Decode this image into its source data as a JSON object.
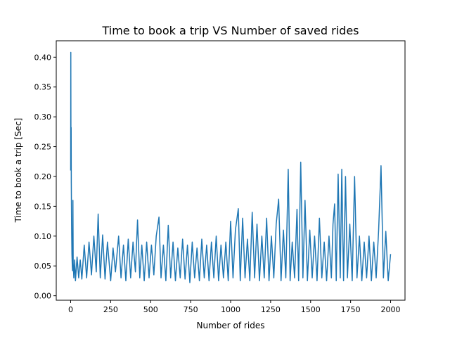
{
  "chart_data": {
    "type": "line",
    "title": "Time to book a trip VS Number of saved rides",
    "xlabel": "Number of rides",
    "ylabel": "Time to book a trip [Sec]",
    "xlim": [
      -90,
      2090
    ],
    "ylim": [
      -0.0075,
      0.4275
    ],
    "xticks": [
      0,
      250,
      500,
      750,
      1000,
      1250,
      1500,
      1750,
      2000
    ],
    "yticks": [
      0.0,
      0.05,
      0.1,
      0.15,
      0.2,
      0.25,
      0.3,
      0.35,
      0.4
    ],
    "xtick_labels": [
      "0",
      "250",
      "500",
      "750",
      "1000",
      "1250",
      "1500",
      "1750",
      "2000"
    ],
    "ytick_labels": [
      "0.00",
      "0.05",
      "0.10",
      "0.15",
      "0.20",
      "0.25",
      "0.30",
      "0.35",
      "0.40"
    ],
    "grid": false,
    "legend": "none",
    "series": [
      {
        "color": "#1f77b4",
        "x": [
          0,
          1,
          2,
          3,
          4,
          6,
          8,
          10,
          12,
          14,
          16,
          20,
          25,
          30,
          40,
          50,
          60,
          70,
          85,
          100,
          115,
          130,
          145,
          160,
          172,
          185,
          200,
          215,
          230,
          250,
          265,
          280,
          300,
          315,
          330,
          345,
          360,
          375,
          390,
          405,
          418,
          432,
          445,
          460,
          475,
          490,
          505,
          520,
          535,
          552,
          565,
          580,
          595,
          610,
          625,
          640,
          655,
          670,
          685,
          700,
          715,
          730,
          745,
          760,
          775,
          790,
          805,
          820,
          835,
          850,
          865,
          880,
          895,
          910,
          925,
          940,
          955,
          970,
          985,
          1000,
          1015,
          1030,
          1048,
          1060,
          1075,
          1090,
          1105,
          1120,
          1135,
          1150,
          1165,
          1180,
          1195,
          1210,
          1225,
          1240,
          1255,
          1270,
          1285,
          1300,
          1315,
          1330,
          1345,
          1360,
          1372,
          1385,
          1400,
          1415,
          1425,
          1438,
          1452,
          1465,
          1480,
          1495,
          1510,
          1525,
          1540,
          1555,
          1570,
          1585,
          1600,
          1615,
          1630,
          1640,
          1650,
          1660,
          1672,
          1685,
          1695,
          1706,
          1718,
          1730,
          1745,
          1760,
          1775,
          1790,
          1805,
          1820,
          1835,
          1850,
          1865,
          1880,
          1895,
          1910,
          1925,
          1940,
          1955,
          1970,
          1985,
          2000
        ],
        "y": [
          0.21,
          0.408,
          0.26,
          0.282,
          0.19,
          0.12,
          0.07,
          0.05,
          0.042,
          0.16,
          0.055,
          0.03,
          0.06,
          0.025,
          0.065,
          0.03,
          0.06,
          0.028,
          0.085,
          0.03,
          0.09,
          0.035,
          0.1,
          0.04,
          0.137,
          0.03,
          0.102,
          0.028,
          0.09,
          0.025,
          0.08,
          0.04,
          0.1,
          0.03,
          0.085,
          0.025,
          0.095,
          0.03,
          0.09,
          0.04,
          0.127,
          0.03,
          0.085,
          0.025,
          0.09,
          0.03,
          0.085,
          0.035,
          0.1,
          0.132,
          0.03,
          0.085,
          0.025,
          0.118,
          0.03,
          0.09,
          0.025,
          0.08,
          0.03,
          0.095,
          0.028,
          0.085,
          0.022,
          0.09,
          0.03,
          0.08,
          0.025,
          0.095,
          0.03,
          0.085,
          0.025,
          0.09,
          0.03,
          0.1,
          0.025,
          0.085,
          0.03,
          0.09,
          0.025,
          0.125,
          0.03,
          0.11,
          0.146,
          0.025,
          0.13,
          0.03,
          0.095,
          0.025,
          0.14,
          0.03,
          0.12,
          0.025,
          0.1,
          0.03,
          0.13,
          0.025,
          0.1,
          0.03,
          0.12,
          0.162,
          0.025,
          0.11,
          0.03,
          0.212,
          0.025,
          0.09,
          0.03,
          0.145,
          0.025,
          0.224,
          0.03,
          0.16,
          0.025,
          0.11,
          0.03,
          0.1,
          0.025,
          0.13,
          0.03,
          0.09,
          0.025,
          0.1,
          0.03,
          0.12,
          0.154,
          0.025,
          0.204,
          0.03,
          0.212,
          0.025,
          0.2,
          0.03,
          0.12,
          0.025,
          0.2,
          0.03,
          0.1,
          0.025,
          0.09,
          0.03,
          0.1,
          0.025,
          0.09,
          0.03,
          0.11,
          0.218,
          0.03,
          0.108,
          0.025,
          0.07
        ]
      }
    ]
  }
}
